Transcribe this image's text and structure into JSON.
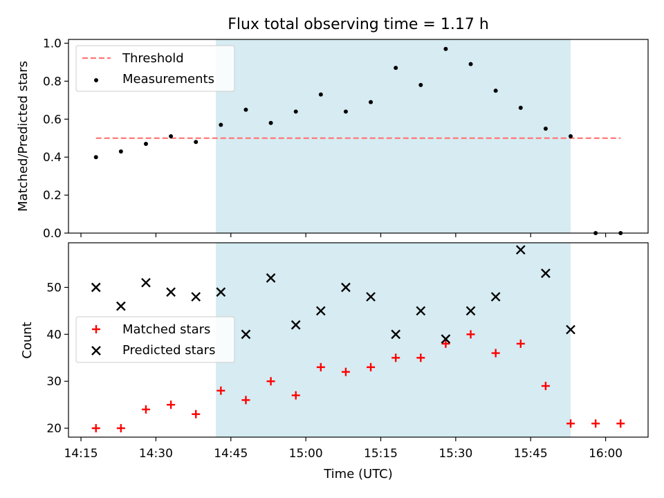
{
  "chart_data": {
    "title": "Flux total observing time = 1.17 h",
    "xlabel": "Time (UTC)",
    "x_ticks": [
      "14:15",
      "14:30",
      "14:45",
      "15:00",
      "15:15",
      "15:30",
      "15:45",
      "16:00"
    ],
    "x_tick_minutes": [
      855,
      870,
      885,
      900,
      915,
      930,
      945,
      960
    ],
    "x_range_minutes": [
      852.5,
      968.5
    ],
    "shaded_region": {
      "start": "14:42",
      "end": "15:53",
      "color": "#add8e6"
    },
    "panels": [
      {
        "type": "scatter",
        "ylabel": "Matched/Predicted stars",
        "ylim": [
          0,
          1.02
        ],
        "yticks": [
          "0.0",
          "0.2",
          "0.4",
          "0.6",
          "0.8",
          "1.0"
        ],
        "ytick_values": [
          0,
          0.2,
          0.4,
          0.6,
          0.8,
          1.0
        ],
        "legend_position": "upper-left",
        "threshold": {
          "name": "Threshold",
          "value": 0.5,
          "x_start": "14:18",
          "x_end": "16:03",
          "color": "#ff7777",
          "style": "dashed"
        },
        "series": [
          {
            "name": "Measurements",
            "marker": "dot",
            "color": "#000000",
            "x": [
              "14:18",
              "14:23",
              "14:28",
              "14:33",
              "14:38",
              "14:43",
              "14:48",
              "14:53",
              "14:58",
              "15:03",
              "15:08",
              "15:13",
              "15:18",
              "15:23",
              "15:28",
              "15:33",
              "15:38",
              "15:43",
              "15:48",
              "15:53",
              "15:58",
              "16:03"
            ],
            "y": [
              0.4,
              0.43,
              0.47,
              0.51,
              0.48,
              0.57,
              0.65,
              0.58,
              0.64,
              0.73,
              0.64,
              0.69,
              0.87,
              0.78,
              0.97,
              0.89,
              0.75,
              0.66,
              0.55,
              0.51,
              0.0,
              0.0
            ]
          }
        ]
      },
      {
        "type": "scatter",
        "ylabel": "Count",
        "ylim": [
          18.1,
          59.5
        ],
        "yticks": [
          "20",
          "30",
          "40",
          "50"
        ],
        "ytick_values": [
          20,
          30,
          40,
          50
        ],
        "legend_position": "center-left",
        "series": [
          {
            "name": "Matched stars",
            "marker": "plus",
            "color": "#ff0000",
            "x": [
              "14:18",
              "14:23",
              "14:28",
              "14:33",
              "14:38",
              "14:43",
              "14:48",
              "14:53",
              "14:58",
              "15:03",
              "15:08",
              "15:13",
              "15:18",
              "15:23",
              "15:28",
              "15:33",
              "15:38",
              "15:43",
              "15:48",
              "15:53",
              "15:58",
              "16:03"
            ],
            "y": [
              20,
              20,
              24,
              25,
              23,
              28,
              26,
              30,
              27,
              33,
              32,
              33,
              35,
              35,
              38,
              40,
              36,
              38,
              29,
              21,
              21,
              21
            ]
          },
          {
            "name": "Predicted stars",
            "marker": "x",
            "color": "#000000",
            "x": [
              "14:18",
              "14:23",
              "14:28",
              "14:33",
              "14:38",
              "14:43",
              "14:48",
              "14:53",
              "14:58",
              "15:03",
              "15:08",
              "15:13",
              "15:18",
              "15:23",
              "15:28",
              "15:33",
              "15:38",
              "15:43",
              "15:48",
              "15:53"
            ],
            "y": [
              50,
              46,
              51,
              49,
              48,
              49,
              40,
              52,
              42,
              45,
              50,
              48,
              40,
              45,
              39,
              45,
              48,
              58,
              53,
              41
            ]
          }
        ]
      }
    ]
  }
}
